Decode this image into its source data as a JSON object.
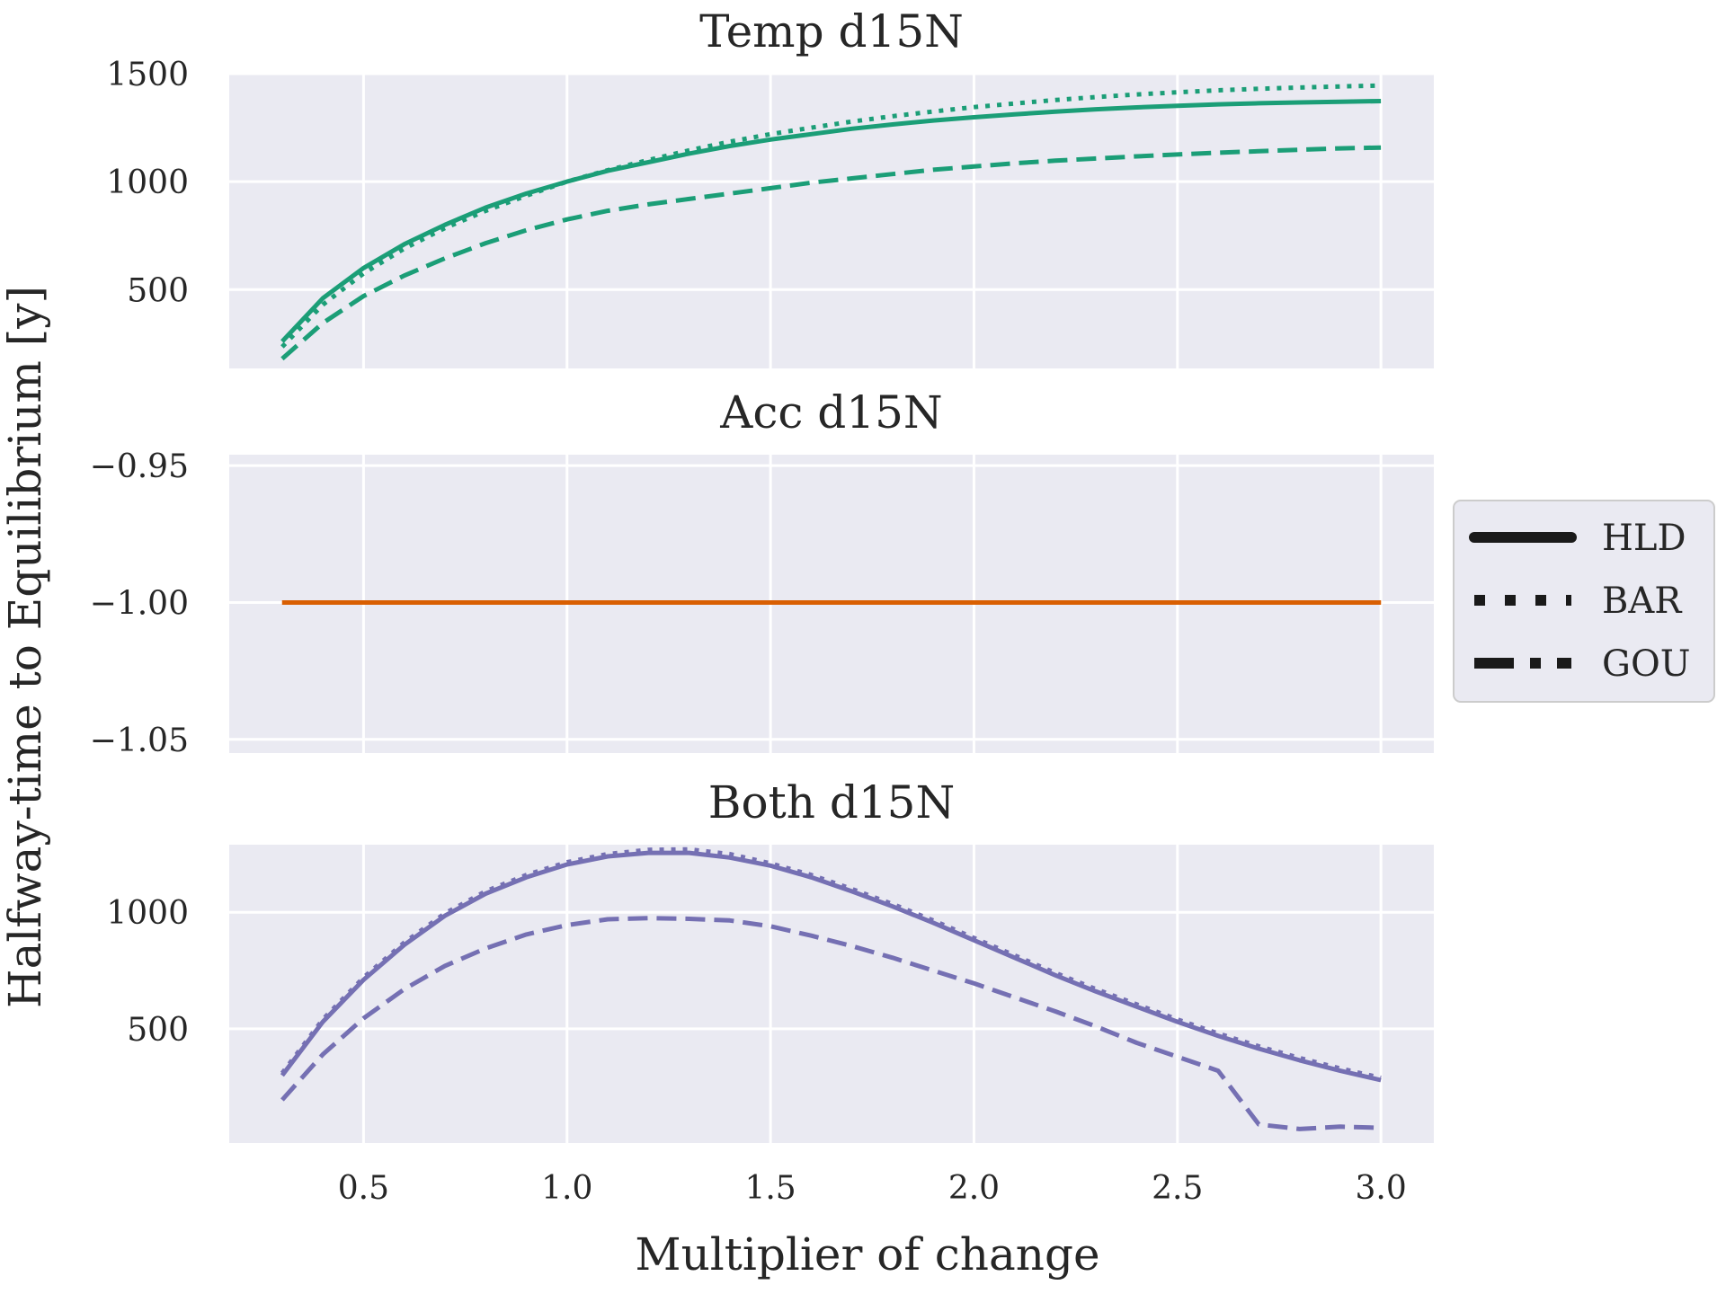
{
  "figure": {
    "ylabel": "Halfway-time to Equilibrium [y]",
    "xlabel": "Multiplier of change"
  },
  "legend": {
    "placement": "center-right",
    "entries": [
      {
        "label": "HLD",
        "style": "solid"
      },
      {
        "label": "BAR",
        "style": "dotted"
      },
      {
        "label": "GOU",
        "style": "dashdot"
      }
    ]
  },
  "chart_data": [
    {
      "type": "line",
      "title": "Temp d15N",
      "color": "#1b9e77",
      "xlim": [
        0.17,
        3.13
      ],
      "ylim": [
        135,
        1500
      ],
      "yticks": [
        500,
        1000,
        1500
      ],
      "ytick_labels": [
        "500",
        "1000",
        "1500"
      ],
      "xticks": [
        0.5,
        1.0,
        1.5,
        2.0,
        2.5,
        3.0
      ],
      "x": [
        0.3,
        0.4,
        0.5,
        0.6,
        0.7,
        0.8,
        0.9,
        1.0,
        1.1,
        1.2,
        1.3,
        1.4,
        1.5,
        1.6,
        1.7,
        1.8,
        1.9,
        2.0,
        2.1,
        2.2,
        2.3,
        2.4,
        2.5,
        2.6,
        2.7,
        2.8,
        2.9,
        3.0
      ],
      "series": [
        {
          "name": "HLD",
          "style": "solid",
          "values": [
            260,
            460,
            600,
            710,
            800,
            880,
            945,
            1000,
            1050,
            1090,
            1130,
            1165,
            1195,
            1220,
            1245,
            1265,
            1283,
            1298,
            1312,
            1324,
            1335,
            1344,
            1351,
            1358,
            1363,
            1367,
            1370,
            1373
          ]
        },
        {
          "name": "BAR",
          "style": "dotted",
          "values": [
            235,
            430,
            575,
            690,
            785,
            865,
            935,
            1000,
            1053,
            1100,
            1145,
            1185,
            1220,
            1250,
            1278,
            1303,
            1325,
            1345,
            1362,
            1378,
            1392,
            1404,
            1414,
            1423,
            1430,
            1436,
            1441,
            1445
          ]
        },
        {
          "name": "GOU",
          "style": "dashdot",
          "values": [
            180,
            345,
            470,
            565,
            645,
            715,
            775,
            825,
            865,
            895,
            920,
            945,
            970,
            995,
            1015,
            1035,
            1055,
            1070,
            1085,
            1097,
            1107,
            1117,
            1126,
            1134,
            1141,
            1148,
            1154,
            1158
          ]
        }
      ]
    },
    {
      "type": "line",
      "title": "Acc d15N",
      "color": "#d95f02",
      "xlim": [
        0.17,
        3.13
      ],
      "ylim": [
        -1.055,
        -0.946
      ],
      "yticks": [
        -1.05,
        -1.0,
        -0.95
      ],
      "ytick_labels": [
        "−1.05",
        "−1.00",
        "−0.95"
      ],
      "xticks": [
        0.5,
        1.0,
        1.5,
        2.0,
        2.5,
        3.0
      ],
      "x": [
        0.3,
        3.0
      ],
      "series": [
        {
          "name": "HLD",
          "style": "solid",
          "values": [
            -1.0,
            -1.0
          ]
        },
        {
          "name": "BAR",
          "style": "dotted",
          "values": [
            -1.0,
            -1.0
          ]
        },
        {
          "name": "GOU",
          "style": "dashdot",
          "values": [
            -1.0,
            -1.0
          ]
        }
      ]
    },
    {
      "type": "line",
      "title": "Both d15N",
      "color": "#7570b3",
      "xlim": [
        0.17,
        3.13
      ],
      "ylim": [
        10,
        1290
      ],
      "yticks": [
        500,
        1000
      ],
      "ytick_labels": [
        "500",
        "1000"
      ],
      "xticks": [
        0.5,
        1.0,
        1.5,
        2.0,
        2.5,
        3.0
      ],
      "xtick_labels": [
        "0.5",
        "1.0",
        "1.5",
        "2.0",
        "2.5",
        "3.0"
      ],
      "x": [
        0.3,
        0.4,
        0.5,
        0.6,
        0.7,
        0.8,
        0.9,
        1.0,
        1.1,
        1.2,
        1.3,
        1.4,
        1.5,
        1.6,
        1.7,
        1.8,
        1.9,
        2.0,
        2.1,
        2.2,
        2.3,
        2.4,
        2.5,
        2.6,
        2.7,
        2.8,
        2.9,
        3.0
      ],
      "series": [
        {
          "name": "HLD",
          "style": "solid",
          "values": [
            300,
            530,
            710,
            860,
            985,
            1080,
            1150,
            1205,
            1240,
            1255,
            1255,
            1235,
            1200,
            1150,
            1090,
            1025,
            955,
            880,
            805,
            730,
            660,
            595,
            530,
            470,
            415,
            365,
            320,
            280
          ]
        },
        {
          "name": "BAR",
          "style": "dotted",
          "values": [
            310,
            540,
            720,
            870,
            995,
            1090,
            1160,
            1215,
            1250,
            1268,
            1270,
            1250,
            1210,
            1160,
            1100,
            1035,
            965,
            890,
            815,
            740,
            670,
            605,
            540,
            480,
            425,
            375,
            330,
            290
          ]
        },
        {
          "name": "GOU",
          "style": "dashdot",
          "values": [
            195,
            390,
            545,
            670,
            770,
            845,
            905,
            945,
            970,
            975,
            972,
            965,
            940,
            900,
            855,
            805,
            750,
            695,
            635,
            575,
            510,
            440,
            380,
            320,
            90,
            70,
            80,
            75
          ]
        }
      ]
    }
  ]
}
